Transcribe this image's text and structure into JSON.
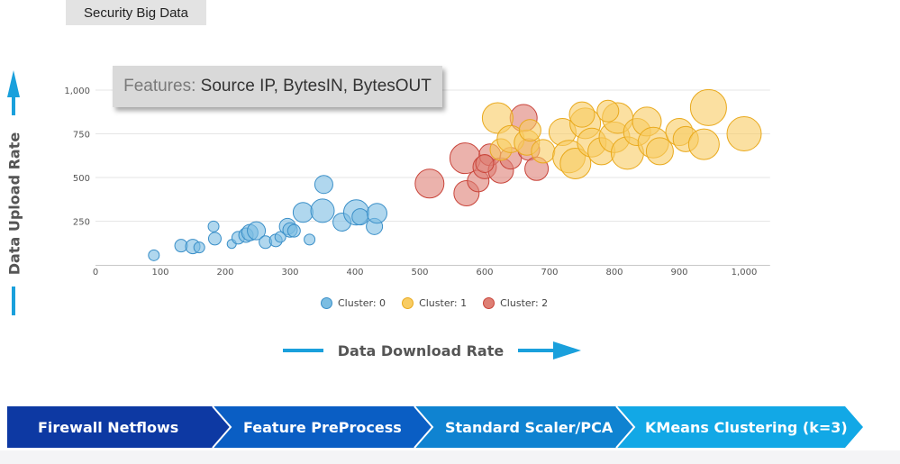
{
  "header": {
    "title": "Security Big Data"
  },
  "annotation": {
    "features_key": "Features:",
    "features_value": "Source IP, BytesIN, BytesOUT"
  },
  "axes": {
    "y_title": "Data Upload Rate",
    "x_title": "Data Download Rate"
  },
  "colors": {
    "cluster_0": "#7bbde2",
    "cluster_0_stroke": "#3a8fc8",
    "cluster_1": "#f8cc63",
    "cluster_1_stroke": "#e9a91c",
    "cluster_2": "#de7f74",
    "cluster_2_stroke": "#c9443a",
    "arrow": "#1aa0dc",
    "pipeline": [
      "#0d39a3",
      "#0a5ec4",
      "#0f83d1",
      "#12a8e6"
    ]
  },
  "pipeline": {
    "steps": [
      "Firewall Netflows",
      "Feature PreProcess",
      "Standard Scaler/PCA",
      "KMeans Clustering (k=3)"
    ]
  },
  "chart_data": {
    "type": "scatter",
    "title": "",
    "xlim": [
      0,
      1050
    ],
    "ylim": [
      0,
      1050
    ],
    "x_ticks": [
      "0",
      "100",
      "200",
      "300",
      "400",
      "500",
      "600",
      "700",
      "800",
      "900",
      "1,000"
    ],
    "y_ticks": [
      "250",
      "500",
      "750",
      "1,000"
    ],
    "grid": "horizontal",
    "legend_position": "bottom",
    "series": [
      {
        "name": "Cluster: 0",
        "points": [
          {
            "x": 90,
            "y": 55,
            "size": 12
          },
          {
            "x": 132,
            "y": 110,
            "size": 14
          },
          {
            "x": 150,
            "y": 105,
            "size": 16
          },
          {
            "x": 160,
            "y": 100,
            "size": 12
          },
          {
            "x": 182,
            "y": 220,
            "size": 12
          },
          {
            "x": 184,
            "y": 150,
            "size": 14
          },
          {
            "x": 210,
            "y": 120,
            "size": 10
          },
          {
            "x": 220,
            "y": 155,
            "size": 14
          },
          {
            "x": 232,
            "y": 170,
            "size": 16
          },
          {
            "x": 238,
            "y": 185,
            "size": 18
          },
          {
            "x": 248,
            "y": 195,
            "size": 20
          },
          {
            "x": 262,
            "y": 130,
            "size": 14
          },
          {
            "x": 278,
            "y": 140,
            "size": 14
          },
          {
            "x": 285,
            "y": 160,
            "size": 12
          },
          {
            "x": 296,
            "y": 220,
            "size": 18
          },
          {
            "x": 300,
            "y": 200,
            "size": 16
          },
          {
            "x": 306,
            "y": 195,
            "size": 14
          },
          {
            "x": 320,
            "y": 300,
            "size": 22
          },
          {
            "x": 330,
            "y": 145,
            "size": 12
          },
          {
            "x": 350,
            "y": 310,
            "size": 26
          },
          {
            "x": 352,
            "y": 460,
            "size": 20
          },
          {
            "x": 380,
            "y": 245,
            "size": 20
          },
          {
            "x": 402,
            "y": 300,
            "size": 28
          },
          {
            "x": 408,
            "y": 275,
            "size": 18
          },
          {
            "x": 430,
            "y": 220,
            "size": 18
          },
          {
            "x": 434,
            "y": 295,
            "size": 22
          }
        ]
      },
      {
        "name": "Cluster: 1",
        "points": [
          {
            "x": 620,
            "y": 840,
            "size": 34
          },
          {
            "x": 625,
            "y": 660,
            "size": 24
          },
          {
            "x": 640,
            "y": 720,
            "size": 30
          },
          {
            "x": 665,
            "y": 700,
            "size": 28
          },
          {
            "x": 690,
            "y": 650,
            "size": 26
          },
          {
            "x": 720,
            "y": 760,
            "size": 30
          },
          {
            "x": 730,
            "y": 620,
            "size": 36
          },
          {
            "x": 740,
            "y": 580,
            "size": 34
          },
          {
            "x": 755,
            "y": 810,
            "size": 34
          },
          {
            "x": 765,
            "y": 700,
            "size": 32
          },
          {
            "x": 780,
            "y": 650,
            "size": 30
          },
          {
            "x": 800,
            "y": 730,
            "size": 34
          },
          {
            "x": 805,
            "y": 840,
            "size": 34
          },
          {
            "x": 820,
            "y": 640,
            "size": 36
          },
          {
            "x": 835,
            "y": 760,
            "size": 30
          },
          {
            "x": 850,
            "y": 820,
            "size": 32
          },
          {
            "x": 860,
            "y": 700,
            "size": 34
          },
          {
            "x": 870,
            "y": 650,
            "size": 30
          },
          {
            "x": 900,
            "y": 760,
            "size": 30
          },
          {
            "x": 910,
            "y": 720,
            "size": 28
          },
          {
            "x": 938,
            "y": 690,
            "size": 34
          },
          {
            "x": 945,
            "y": 900,
            "size": 40
          },
          {
            "x": 1000,
            "y": 750,
            "size": 38
          },
          {
            "x": 670,
            "y": 770,
            "size": 24
          },
          {
            "x": 750,
            "y": 860,
            "size": 28
          },
          {
            "x": 790,
            "y": 880,
            "size": 24
          }
        ]
      },
      {
        "name": "Cluster: 2",
        "points": [
          {
            "x": 515,
            "y": 465,
            "size": 32
          },
          {
            "x": 570,
            "y": 610,
            "size": 34
          },
          {
            "x": 572,
            "y": 410,
            "size": 28
          },
          {
            "x": 590,
            "y": 480,
            "size": 24
          },
          {
            "x": 600,
            "y": 560,
            "size": 26
          },
          {
            "x": 608,
            "y": 630,
            "size": 24
          },
          {
            "x": 625,
            "y": 540,
            "size": 28
          },
          {
            "x": 640,
            "y": 610,
            "size": 24
          },
          {
            "x": 660,
            "y": 840,
            "size": 30
          },
          {
            "x": 668,
            "y": 660,
            "size": 24
          },
          {
            "x": 680,
            "y": 550,
            "size": 26
          },
          {
            "x": 600,
            "y": 580,
            "size": 20
          }
        ]
      }
    ]
  }
}
